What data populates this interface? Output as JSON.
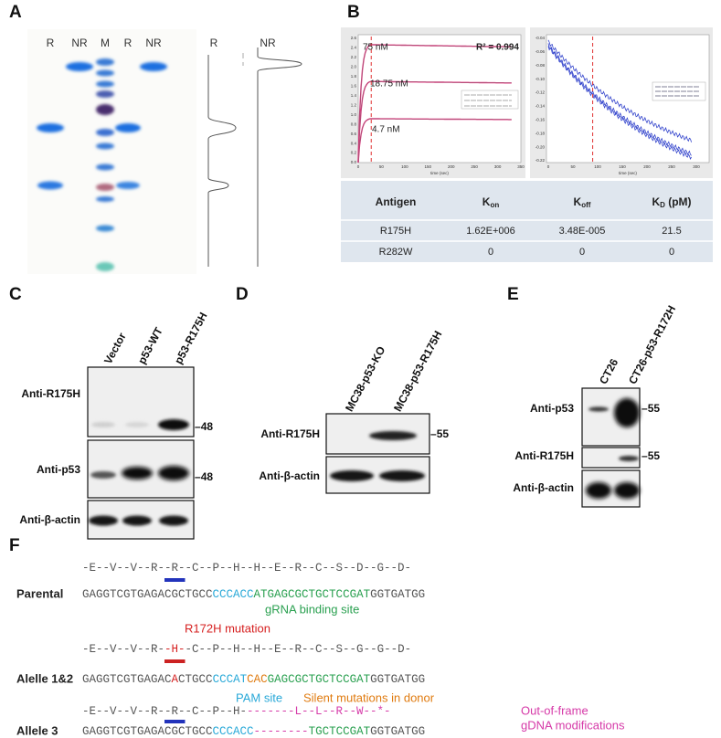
{
  "panels": {
    "A": {
      "label": "A",
      "gel_lanes": [
        "R",
        "NR",
        "M",
        "R",
        "NR"
      ],
      "trace_labels": [
        "R",
        "NR"
      ]
    },
    "B": {
      "label": "B",
      "left_plot": {
        "yticks": [
          "2.6",
          "2.4",
          "2.2",
          "2.0",
          "1.8",
          "1.6",
          "1.4",
          "1.2",
          "1.0",
          "0.8",
          "0.6",
          "0.4",
          "0.2",
          "0.0"
        ],
        "xticks": [
          "0",
          "50",
          "100",
          "150",
          "200",
          "250",
          "300",
          "350"
        ],
        "xlabel": "time (sec)",
        "concentrations": [
          "75 nM",
          "18.75 nM",
          "4.7 nM"
        ],
        "r2": "R² = 0.994"
      },
      "right_plot": {
        "yticks": [
          "-0.04",
          "-0.06",
          "-0.08",
          "-0.10",
          "-0.12",
          "-0.14",
          "-0.16",
          "-0.18",
          "-0.20",
          "-0.22"
        ],
        "xticks": [
          "0",
          "50",
          "100",
          "150",
          "200",
          "250",
          "300"
        ],
        "xlabel": "time (sec)"
      },
      "table": {
        "header": [
          {
            "text": "Antigen"
          },
          {
            "text": "K",
            "sub": "on"
          },
          {
            "text": "K",
            "sub": "off"
          },
          {
            "text": "K",
            "sub": "D",
            "suffix": " (pM)"
          }
        ],
        "rows": [
          [
            "R175H",
            "1.62E+006",
            "3.48E-005",
            "21.5"
          ],
          [
            "R282W",
            "0",
            "0",
            "0"
          ]
        ]
      }
    },
    "C": {
      "label": "C",
      "columns": [
        "Vector",
        "p53-WT",
        "p53-R175H"
      ],
      "rows": [
        "Anti-R175H",
        "Anti-p53",
        "Anti-β-actin"
      ],
      "markers": [
        "48",
        "48"
      ]
    },
    "D": {
      "label": "D",
      "columns": [
        "MC38-p53-KO",
        "MC38-p53-R175H"
      ],
      "rows": [
        "Anti-R175H",
        "Anti-β-actin"
      ],
      "markers": [
        "55"
      ]
    },
    "E": {
      "label": "E",
      "columns": [
        "CT26",
        "CT26-p53-R172H"
      ],
      "rows": [
        "Anti-p53",
        "Anti-R175H",
        "Anti-β-actin"
      ],
      "markers": [
        "55",
        "55"
      ]
    },
    "F": {
      "label": "F",
      "rows": [
        {
          "name": "Parental",
          "protein": [
            {
              "text": "-E--V--V--R--R--C--P--H--H--E--R--C--S--D--G--D-",
              "color": "#555555"
            }
          ],
          "dna": [
            {
              "text": "GAGGTCGTGAGACGCTGCC",
              "color": "#555555"
            },
            {
              "text": "CCCACC",
              "color": "#29a9d8"
            },
            {
              "text": "ATGAGCGCTGCTCCGAT",
              "color": "#2aa050"
            },
            {
              "text": "GGTGATGG",
              "color": "#555555"
            }
          ]
        },
        {
          "name": "Alelle 1&2",
          "protein": [
            {
              "text": "-E--V--V--R-",
              "color": "#555555"
            },
            {
              "text": "-H-",
              "color": "#d62020"
            },
            {
              "text": "-C--P--H--H--E--R--C--S--G--G--D-",
              "color": "#555555"
            }
          ],
          "dna": [
            {
              "text": "GAGGTCGTGAGAC",
              "color": "#555555"
            },
            {
              "text": "A",
              "color": "#d62020"
            },
            {
              "text": "CTGCC",
              "color": "#555555"
            },
            {
              "text": "CCCAT",
              "color": "#29a9d8"
            },
            {
              "text": "CAC",
              "color": "#e07b10"
            },
            {
              "text": "GAGCGCTGCTCCGAT",
              "color": "#2aa050"
            },
            {
              "text": "GGTGATGG",
              "color": "#555555"
            }
          ]
        },
        {
          "name": "Allele 3",
          "protein": [
            {
              "text": "-E--V--V--R--R--C--P--H-",
              "color": "#555555"
            },
            {
              "text": "-------L--L--R--W--*-",
              "color": "#d63aa8"
            }
          ],
          "dna": [
            {
              "text": "GAGGTCGTGAGACGCTGCC",
              "color": "#555555"
            },
            {
              "text": "CCCACC",
              "color": "#29a9d8"
            },
            {
              "text": "--------",
              "color": "#d63aa8"
            },
            {
              "text": "TGCTCCGAT",
              "color": "#2aa050"
            },
            {
              "text": "GGTGATGG",
              "color": "#555555"
            }
          ]
        }
      ],
      "annotations": [
        {
          "text": "gRNA binding site",
          "color": "#2aa050"
        },
        {
          "text": "R172H mutation",
          "color": "#d62020"
        },
        {
          "text": "PAM site",
          "color": "#29a9d8"
        },
        {
          "text": "Silent mutations in donor",
          "color": "#e07b10"
        },
        {
          "text": "Out-of-frame",
          "color": "#d63aa8"
        },
        {
          "text": "gDNA modifications",
          "color": "#d63aa8"
        }
      ]
    }
  }
}
